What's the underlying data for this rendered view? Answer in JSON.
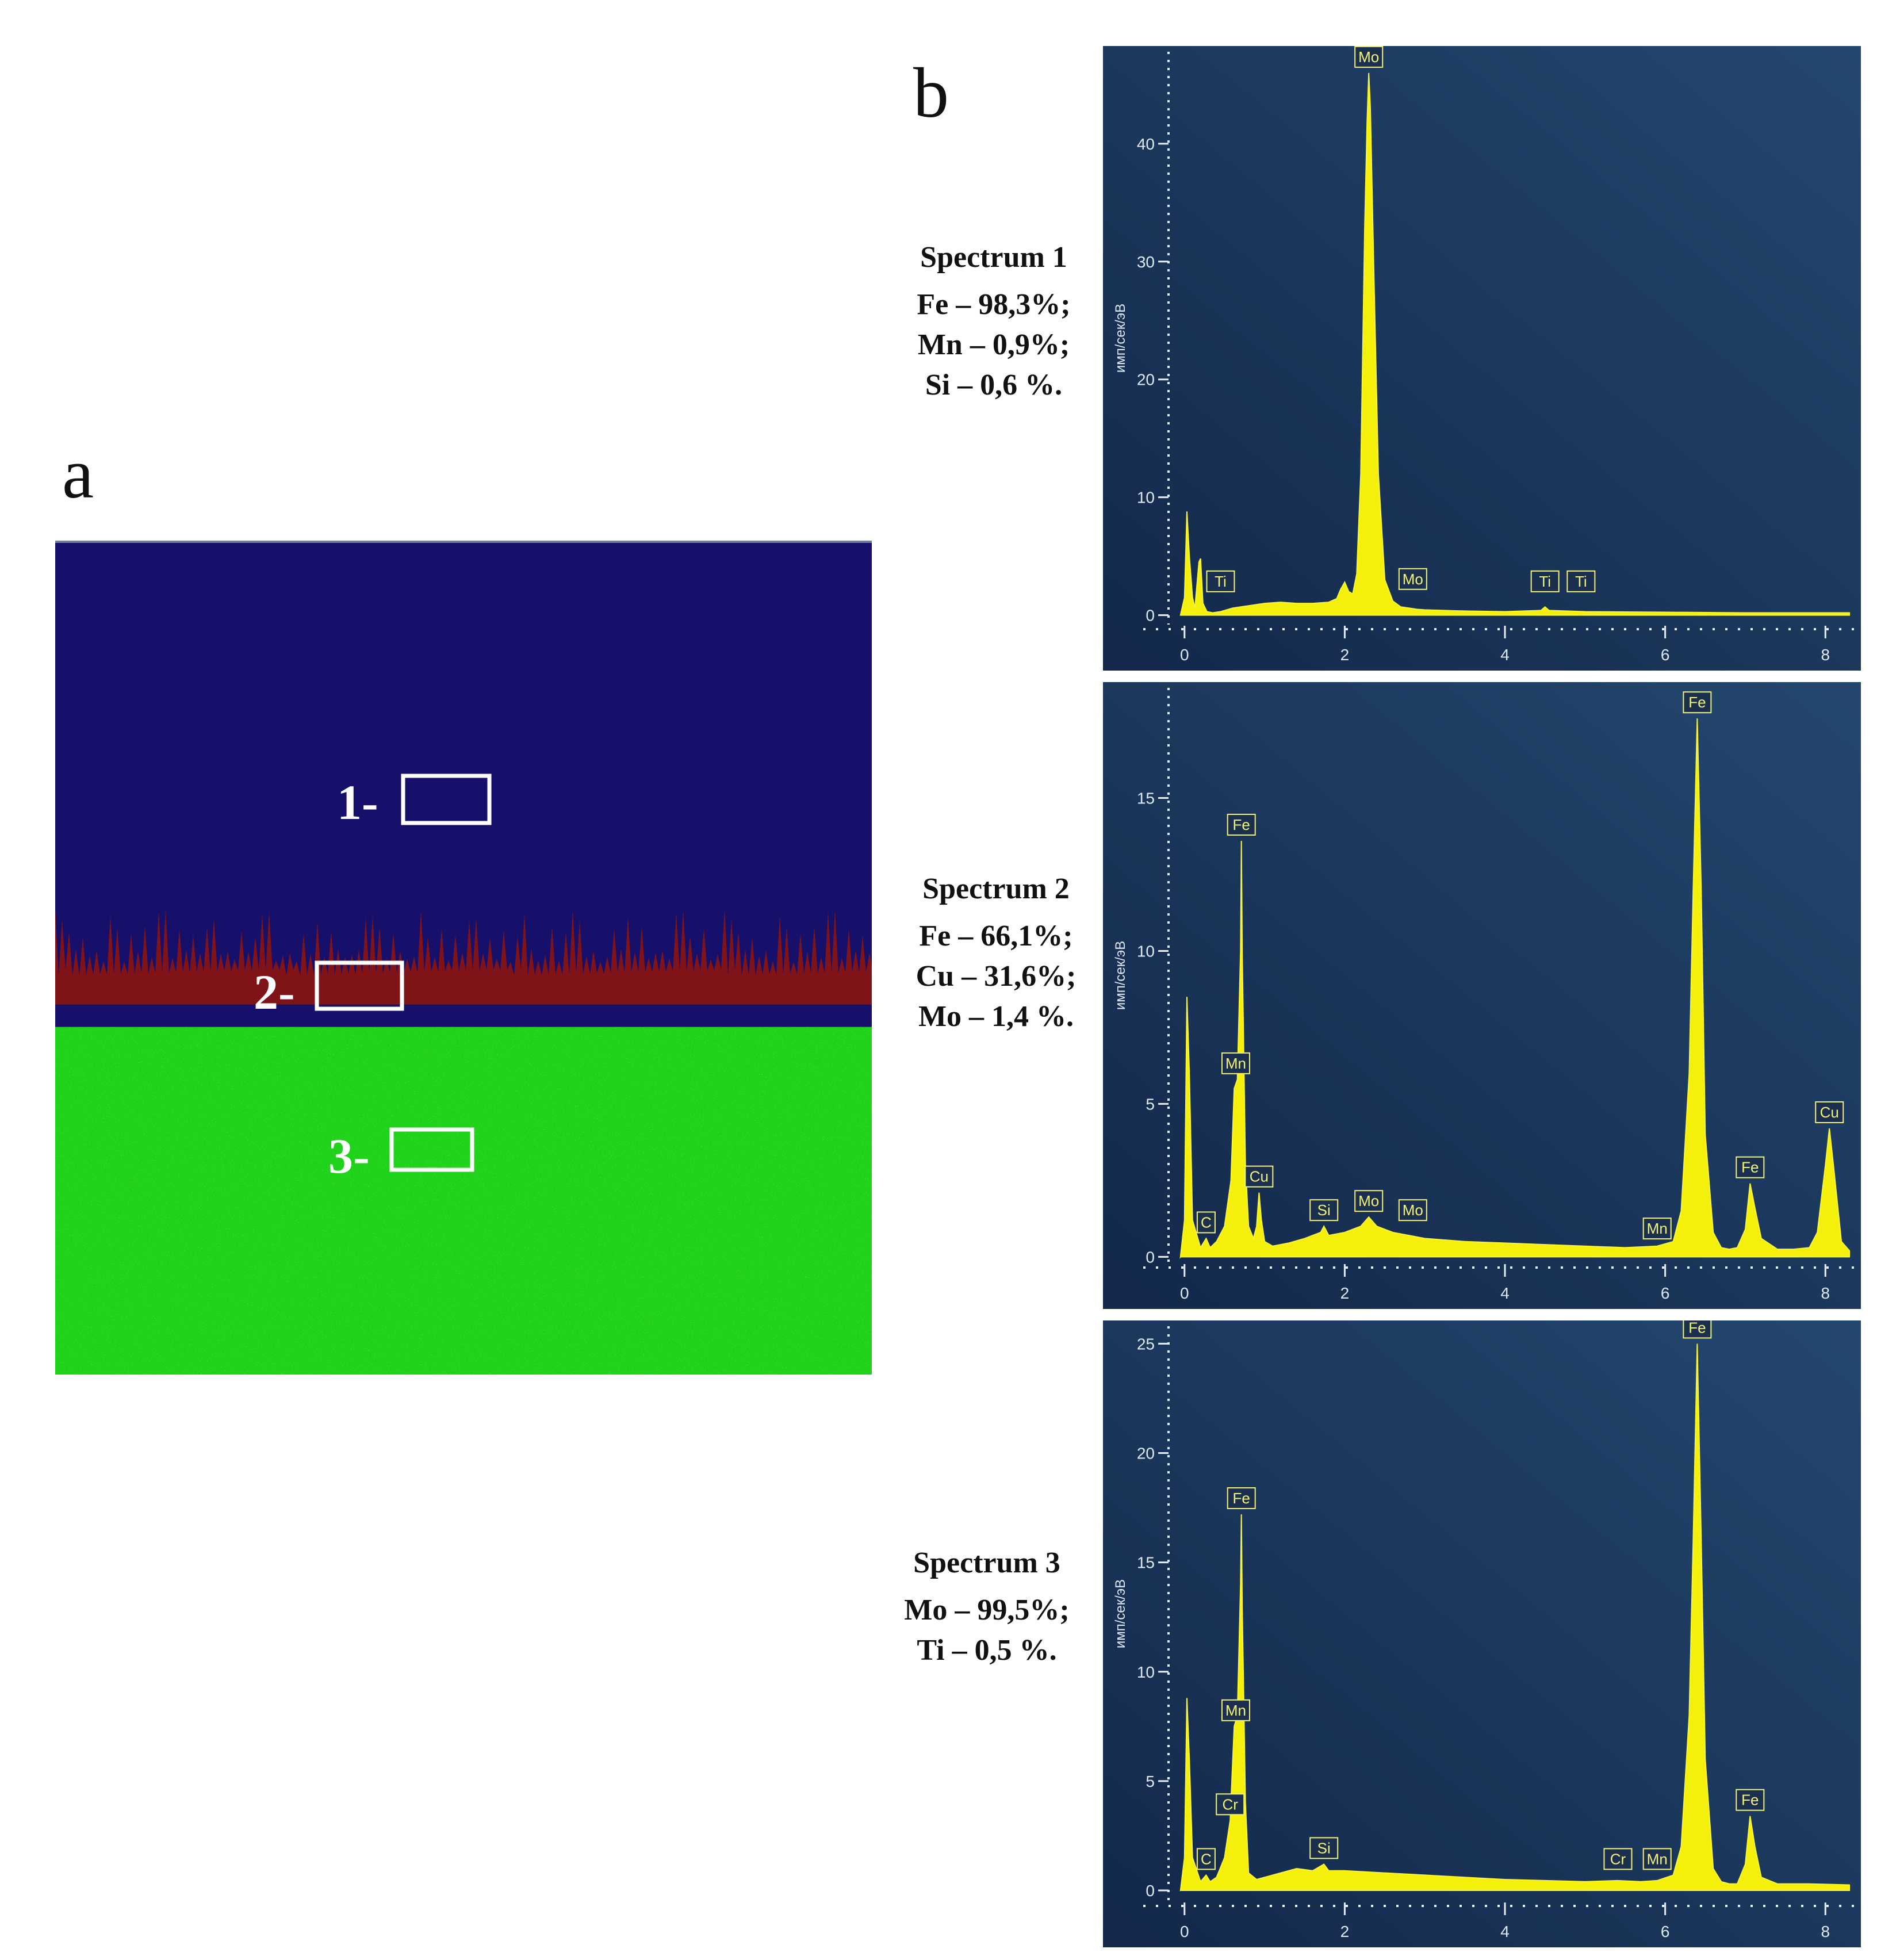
{
  "panel_a": {
    "letter": "a",
    "regions": [
      {
        "label": "1-",
        "color": "#17106a"
      },
      {
        "label": "2-",
        "color": "#8a1410"
      },
      {
        "label": "3-",
        "color": "#1fd21a"
      }
    ]
  },
  "panel_b": {
    "letter": "b"
  },
  "chart_data": [
    {
      "type": "line",
      "title": "Spectrum 1",
      "composition": [
        "Fe – 98,3%;",
        "Mn – 0,9%;",
        "Si – 0,6 %."
      ],
      "ylabel": "имп/сек/эВ",
      "xlim": [
        -0.3,
        8.4
      ],
      "ylim": [
        -0.8,
        47.8
      ],
      "xticks": [
        0,
        2,
        4,
        6,
        8
      ],
      "yticks": [
        0,
        10,
        20,
        30,
        40
      ],
      "peak_labels": [
        {
          "text": "Ti",
          "x": 0.45,
          "y": 1.5
        },
        {
          "text": "Mo",
          "x": 2.3,
          "y": 46
        },
        {
          "text": "Mo",
          "x": 2.85,
          "y": 1.7
        },
        {
          "text": "Ti",
          "x": 4.5,
          "y": 1.5
        },
        {
          "text": "Ti",
          "x": 4.95,
          "y": 1.5
        }
      ],
      "x": [
        -0.05,
        0.0,
        0.03,
        0.06,
        0.1,
        0.13,
        0.18,
        0.2,
        0.23,
        0.28,
        0.35,
        0.45,
        0.6,
        0.8,
        1.0,
        1.2,
        1.4,
        1.6,
        1.8,
        1.9,
        1.95,
        2.0,
        2.05,
        2.1,
        2.15,
        2.2,
        2.25,
        2.28,
        2.3,
        2.32,
        2.36,
        2.42,
        2.5,
        2.6,
        2.7,
        2.8,
        2.9,
        3.0,
        3.5,
        4.0,
        4.45,
        4.5,
        4.55,
        5.0,
        6.0,
        7.0,
        8.0,
        8.3
      ],
      "y": [
        0,
        1.5,
        8.8,
        5,
        1.5,
        0.6,
        4.5,
        4.8,
        1,
        0.3,
        0.2,
        0.3,
        0.6,
        0.8,
        1.0,
        1.1,
        1.0,
        1.0,
        1.1,
        1.4,
        2.2,
        2.8,
        2.0,
        1.8,
        3.5,
        12,
        33,
        42,
        46,
        43,
        30,
        12,
        3,
        1.2,
        0.7,
        0.6,
        0.5,
        0.45,
        0.35,
        0.3,
        0.4,
        0.7,
        0.4,
        0.3,
        0.25,
        0.2,
        0.2,
        0.2
      ]
    },
    {
      "type": "line",
      "title": "Spectrum 2",
      "composition": [
        "Fe – 66,1%;",
        "Cu – 31,6%;",
        "Mo – 1,4 %."
      ],
      "ylabel": "имп/сек/эВ",
      "xlim": [
        -0.3,
        8.4
      ],
      "ylim": [
        -0.2,
        18.6
      ],
      "xticks": [
        0,
        2,
        4,
        6,
        8
      ],
      "yticks": [
        0,
        5,
        10,
        15
      ],
      "peak_labels": [
        {
          "text": "C",
          "x": 0.27,
          "y": 0.6
        },
        {
          "text": "Fe",
          "x": 0.71,
          "y": 13.6
        },
        {
          "text": "Mn",
          "x": 0.64,
          "y": 5.8
        },
        {
          "text": "Cu",
          "x": 0.93,
          "y": 2.1
        },
        {
          "text": "Si",
          "x": 1.74,
          "y": 1.0
        },
        {
          "text": "Mo",
          "x": 2.3,
          "y": 1.3
        },
        {
          "text": "Mo",
          "x": 2.85,
          "y": 1.0
        },
        {
          "text": "Mn",
          "x": 5.9,
          "y": 0.4
        },
        {
          "text": "Fe",
          "x": 6.4,
          "y": 17.6
        },
        {
          "text": "Fe",
          "x": 7.06,
          "y": 2.4
        },
        {
          "text": "Cu",
          "x": 8.05,
          "y": 4.2
        }
      ],
      "x": [
        -0.05,
        0.0,
        0.03,
        0.06,
        0.1,
        0.2,
        0.27,
        0.32,
        0.4,
        0.5,
        0.58,
        0.62,
        0.66,
        0.7,
        0.71,
        0.72,
        0.76,
        0.8,
        0.86,
        0.9,
        0.93,
        0.96,
        1.0,
        1.1,
        1.3,
        1.5,
        1.7,
        1.74,
        1.8,
        2.0,
        2.2,
        2.3,
        2.4,
        2.6,
        2.8,
        3.0,
        3.5,
        4.0,
        4.5,
        5.0,
        5.5,
        5.9,
        6.1,
        6.2,
        6.3,
        6.35,
        6.4,
        6.45,
        6.5,
        6.6,
        6.7,
        6.8,
        6.9,
        7.0,
        7.06,
        7.12,
        7.2,
        7.4,
        7.6,
        7.8,
        7.9,
        8.0,
        8.05,
        8.1,
        8.2,
        8.3
      ],
      "y": [
        0,
        1.2,
        8.5,
        6,
        1.2,
        0.3,
        0.6,
        0.3,
        0.5,
        1.0,
        2.5,
        5.5,
        5.8,
        10,
        13.6,
        10,
        3,
        1.0,
        0.6,
        1.0,
        2.1,
        1.2,
        0.5,
        0.35,
        0.45,
        0.6,
        0.8,
        1.0,
        0.7,
        0.8,
        1.0,
        1.3,
        1.0,
        0.8,
        0.7,
        0.6,
        0.5,
        0.45,
        0.4,
        0.35,
        0.3,
        0.35,
        0.5,
        1.5,
        6,
        12,
        17.6,
        12,
        4,
        0.8,
        0.3,
        0.25,
        0.3,
        0.9,
        2.4,
        1.6,
        0.6,
        0.25,
        0.25,
        0.3,
        0.8,
        3.0,
        4.2,
        3.0,
        0.5,
        0.2
      ]
    },
    {
      "type": "line",
      "title": "Spectrum 3",
      "composition": [
        "Mo – 99,5%;",
        "Ti – 0,5 %."
      ],
      "ylabel": "имп/сек/эВ",
      "xlim": [
        -0.3,
        8.4
      ],
      "ylim": [
        -0.5,
        25.8
      ],
      "xticks": [
        0,
        2,
        4,
        6,
        8
      ],
      "yticks": [
        0,
        5,
        10,
        15,
        20,
        25
      ],
      "peak_labels": [
        {
          "text": "C",
          "x": 0.27,
          "y": 0.7
        },
        {
          "text": "Fe",
          "x": 0.71,
          "y": 17.2
        },
        {
          "text": "Mn",
          "x": 0.64,
          "y": 7.5
        },
        {
          "text": "Cr",
          "x": 0.57,
          "y": 3.2
        },
        {
          "text": "Si",
          "x": 1.74,
          "y": 1.2
        },
        {
          "text": "Cr",
          "x": 5.41,
          "y": 0.7
        },
        {
          "text": "Mn",
          "x": 5.9,
          "y": 0.7
        },
        {
          "text": "Fe",
          "x": 6.4,
          "y": 25.0
        },
        {
          "text": "Fe",
          "x": 7.06,
          "y": 3.4
        }
      ],
      "x": [
        -0.05,
        0.0,
        0.03,
        0.06,
        0.1,
        0.2,
        0.27,
        0.32,
        0.4,
        0.5,
        0.57,
        0.62,
        0.66,
        0.7,
        0.71,
        0.72,
        0.76,
        0.8,
        0.9,
        1.0,
        1.2,
        1.4,
        1.6,
        1.74,
        1.8,
        2.0,
        2.5,
        3.0,
        3.5,
        4.0,
        4.5,
        5.0,
        5.4,
        5.7,
        5.9,
        6.1,
        6.2,
        6.3,
        6.35,
        6.4,
        6.45,
        6.5,
        6.6,
        6.7,
        6.8,
        6.9,
        7.0,
        7.06,
        7.12,
        7.2,
        7.4,
        7.8,
        8.3
      ],
      "y": [
        0,
        1.5,
        8.8,
        6,
        1.5,
        0.4,
        0.7,
        0.4,
        0.6,
        1.5,
        3.2,
        7.5,
        8,
        14,
        17.2,
        13,
        4,
        0.8,
        0.5,
        0.6,
        0.8,
        1.0,
        0.9,
        1.2,
        0.9,
        0.9,
        0.8,
        0.7,
        0.6,
        0.5,
        0.45,
        0.4,
        0.45,
        0.4,
        0.45,
        0.7,
        2,
        8,
        16,
        25,
        16,
        6,
        1,
        0.4,
        0.3,
        0.3,
        1.2,
        3.4,
        2.0,
        0.6,
        0.3,
        0.3,
        0.25
      ]
    }
  ]
}
